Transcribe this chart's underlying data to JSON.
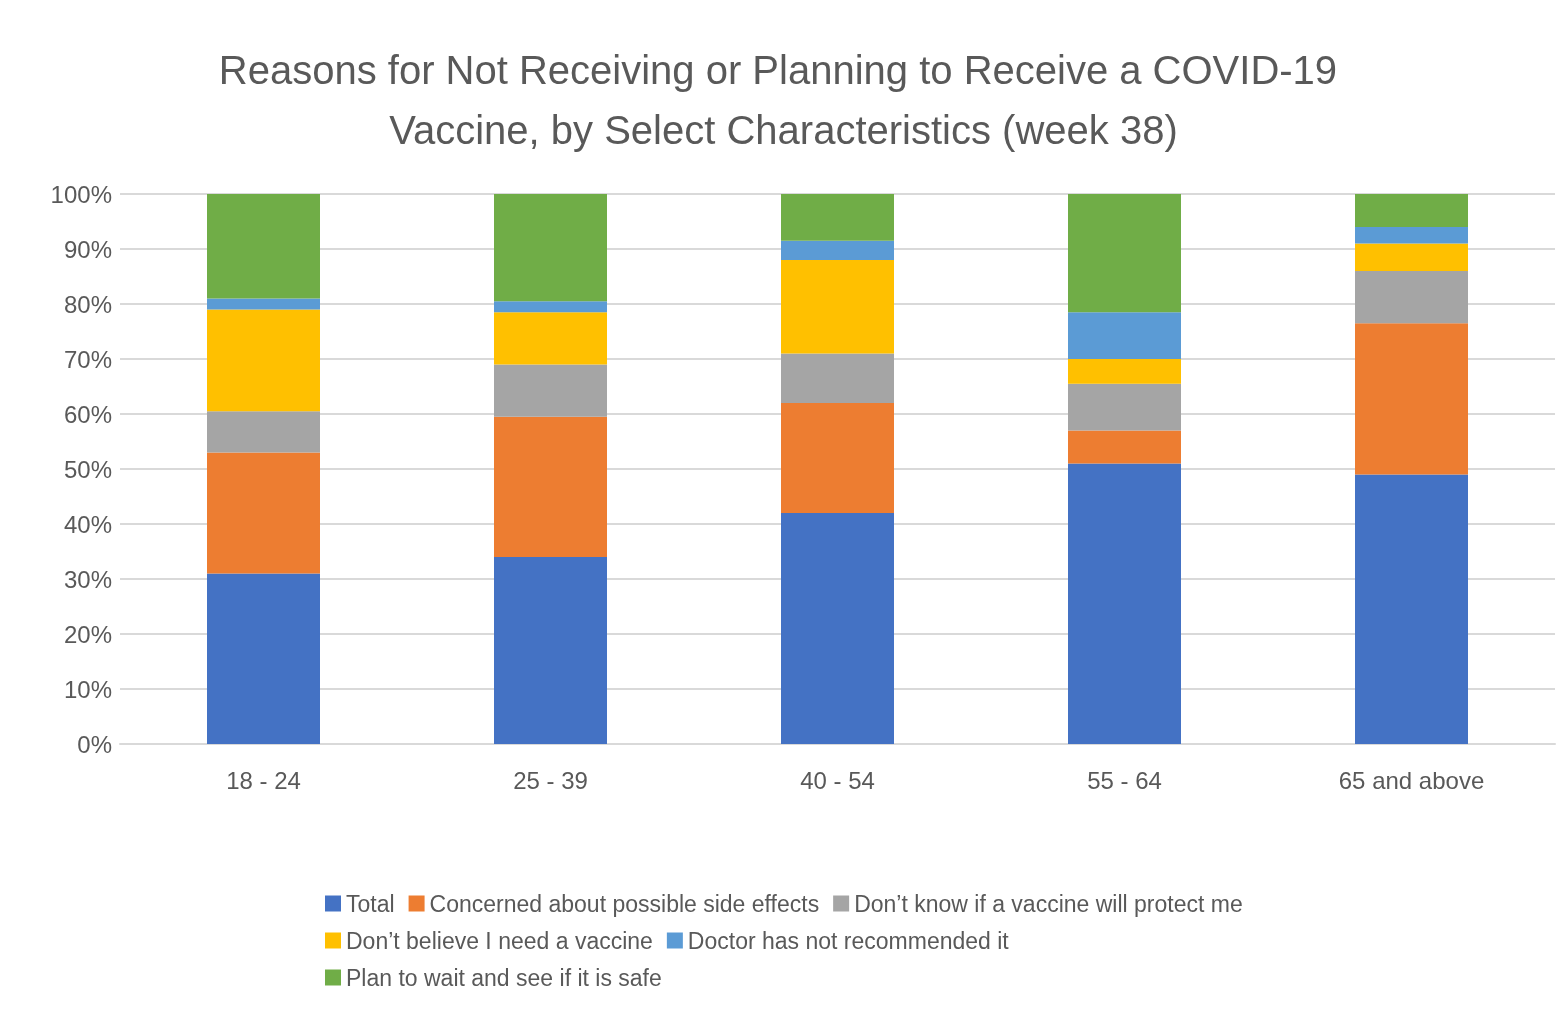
{
  "chart_data": {
    "type": "bar",
    "title": "Reasons for Not Receiving or Planning to Receive a COVID-19 Vaccine, by Select Characteristics (week 38)",
    "categories": [
      "18 - 24",
      "25 - 39",
      "40 - 54",
      "55 - 64",
      "65 and above"
    ],
    "stacked": true,
    "series": [
      {
        "name": "Total",
        "color": "#4472c4",
        "values": [
          31,
          34,
          42,
          51,
          49
        ]
      },
      {
        "name": "Concerned about possible side effects",
        "color": "#ed7d31",
        "values": [
          22,
          25.5,
          20,
          6,
          27.5
        ]
      },
      {
        "name": "Don’t know if a vaccine will protect me",
        "color": "#a5a5a5",
        "values": [
          7.5,
          9.5,
          9,
          8.5,
          9.5
        ]
      },
      {
        "name": "Don’t believe I need a vaccine",
        "color": "#ffc000",
        "values": [
          18.5,
          9.5,
          17,
          4.5,
          5
        ]
      },
      {
        "name": "Doctor has not recommended it",
        "color": "#5b9bd5",
        "values": [
          2,
          2,
          3.5,
          8.5,
          3
        ]
      },
      {
        "name": "Plan to wait and see if it is safe",
        "color": "#70ad47",
        "values": [
          19,
          19.5,
          8.5,
          21.5,
          6
        ]
      }
    ],
    "ylim": [
      0,
      100
    ],
    "yticks": [
      {
        "value": 0,
        "label": "0%"
      },
      {
        "value": 10,
        "label": "10%"
      },
      {
        "value": 20,
        "label": "20%"
      },
      {
        "value": 30,
        "label": "30%"
      },
      {
        "value": 40,
        "label": "40%"
      },
      {
        "value": 50,
        "label": "50%"
      },
      {
        "value": 60,
        "label": "60%"
      },
      {
        "value": 70,
        "label": "70%"
      },
      {
        "value": 80,
        "label": "80%"
      },
      {
        "value": 90,
        "label": "90%"
      },
      {
        "value": 100,
        "label": "100%"
      }
    ],
    "grid": "y",
    "legend": "bottom"
  }
}
